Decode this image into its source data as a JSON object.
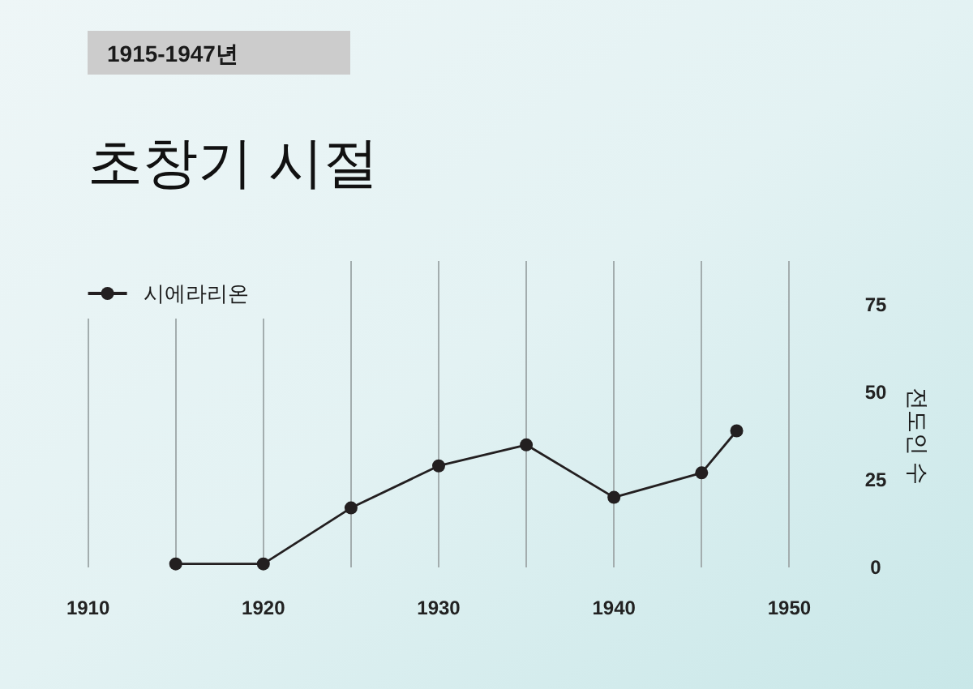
{
  "chart_data": {
    "type": "line",
    "title": "초창기 시절",
    "subtitle": "1915-1947년",
    "ylabel": "전도인 수",
    "x": [
      1915,
      1920,
      1925,
      1930,
      1935,
      1940,
      1945,
      1947
    ],
    "series": [
      {
        "name": "시에라리온",
        "color": "#231f20",
        "values": [
          1,
          1,
          17,
          29,
          35,
          20,
          27,
          39
        ]
      }
    ],
    "xlim": [
      1910,
      1950
    ],
    "xticks": [
      1910,
      {
        "value": 1915,
        "label": null
      },
      1920,
      {
        "value": 1925,
        "label": null
      },
      1930,
      {
        "value": 1935,
        "label": null
      },
      1940,
      {
        "value": 1945,
        "label": null
      },
      1950
    ],
    "ylim": [
      0,
      87.5
    ],
    "yticks": [
      0,
      25,
      50,
      75
    ],
    "grid": "x",
    "legend": "top left",
    "marker": "circle",
    "line_style": "solid"
  }
}
